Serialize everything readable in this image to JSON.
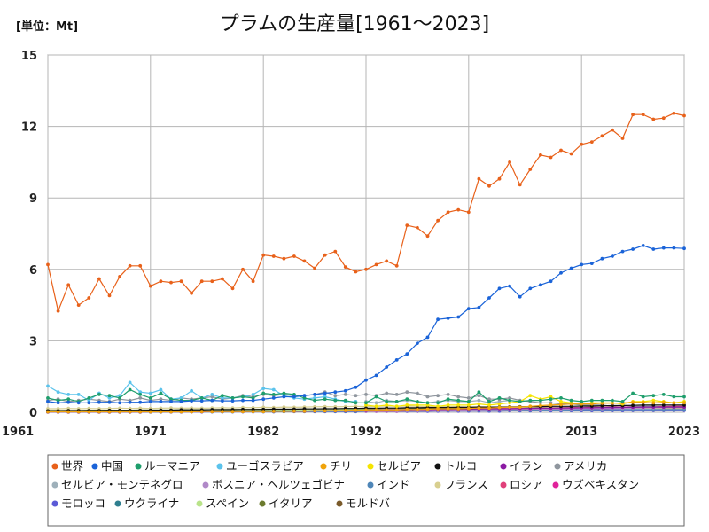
{
  "chart_data": {
    "type": "line",
    "title": "プラムの生産量[1961～2023]",
    "unit": "[単位：Mt]",
    "xlabel": "",
    "ylabel": "",
    "xlim": [
      1961,
      2023
    ],
    "ylim": [
      0,
      15
    ],
    "x_ticks": [
      1961,
      1971,
      1982,
      1992,
      2002,
      2013,
      2023
    ],
    "y_ticks": [
      0,
      3,
      6,
      9,
      12,
      15
    ],
    "grid": true,
    "legend_position": "bottom",
    "series": [
      {
        "name": "世界",
        "color": "#e8611a",
        "start": 1961,
        "values": [
          6.2,
          4.25,
          5.35,
          4.5,
          4.8,
          5.6,
          4.9,
          5.7,
          6.15,
          6.15,
          5.3,
          5.5,
          5.45,
          5.5,
          5.0,
          5.5,
          5.5,
          5.6,
          5.2,
          6.0,
          5.5,
          6.6,
          6.55,
          6.45,
          6.55,
          6.35,
          6.05,
          6.6,
          6.75,
          6.1,
          5.9,
          6.0,
          6.2,
          6.35,
          6.15,
          7.85,
          7.75,
          7.4,
          8.05,
          8.4,
          8.5,
          8.4,
          9.8,
          9.5,
          9.8,
          10.5,
          9.55,
          10.2,
          10.8,
          10.7,
          11.0,
          10.85,
          11.25,
          11.35,
          11.6,
          11.85,
          11.5,
          12.5,
          12.5,
          12.3,
          12.35,
          12.55,
          12.45
        ]
      },
      {
        "name": "中国",
        "color": "#1a63d8",
        "start": 1961,
        "values": [
          0.45,
          0.4,
          0.42,
          0.4,
          0.4,
          0.42,
          0.42,
          0.4,
          0.42,
          0.42,
          0.45,
          0.45,
          0.45,
          0.45,
          0.48,
          0.48,
          0.5,
          0.48,
          0.48,
          0.5,
          0.5,
          0.55,
          0.6,
          0.65,
          0.65,
          0.7,
          0.75,
          0.8,
          0.85,
          0.9,
          1.05,
          1.35,
          1.55,
          1.9,
          2.2,
          2.45,
          2.9,
          3.15,
          3.9,
          3.95,
          4.0,
          4.35,
          4.4,
          4.8,
          5.2,
          5.3,
          4.85,
          5.2,
          5.35,
          5.5,
          5.85,
          6.05,
          6.2,
          6.25,
          6.45,
          6.55,
          6.75,
          6.85,
          7.0,
          6.85,
          6.9,
          6.9,
          6.88
        ]
      },
      {
        "name": "ルーマニア",
        "color": "#1e9e6c",
        "start": 1961,
        "values": [
          0.6,
          0.5,
          0.55,
          0.45,
          0.6,
          0.75,
          0.7,
          0.6,
          0.95,
          0.75,
          0.6,
          0.8,
          0.55,
          0.5,
          0.5,
          0.6,
          0.5,
          0.7,
          0.6,
          0.65,
          0.6,
          0.8,
          0.75,
          0.8,
          0.75,
          0.6,
          0.5,
          0.55,
          0.5,
          0.5,
          0.4,
          0.4,
          0.65,
          0.45,
          0.45,
          0.55,
          0.45,
          0.4,
          0.4,
          0.55,
          0.5,
          0.45,
          0.85,
          0.45,
          0.6,
          0.5,
          0.45,
          0.5,
          0.5,
          0.55,
          0.6,
          0.5,
          0.45,
          0.5,
          0.5,
          0.5,
          0.45,
          0.8,
          0.65,
          0.7,
          0.75,
          0.65,
          0.65
        ]
      },
      {
        "name": "ユーゴスラビア",
        "color": "#5bc3ec",
        "start": 1961,
        "values": [
          1.1,
          0.85,
          0.75,
          0.75,
          0.5,
          0.8,
          0.6,
          0.7,
          1.25,
          0.85,
          0.8,
          0.95,
          0.55,
          0.6,
          0.9,
          0.6,
          0.75,
          0.6,
          0.6,
          0.65,
          0.75,
          1.0,
          0.95,
          0.7,
          0.6,
          0.55,
          0.6,
          0.65,
          0.55,
          0.45,
          0.45
        ]
      },
      {
        "name": "チリ",
        "color": "#f0a30a",
        "start": 1961,
        "values": [
          0.02,
          0.02,
          0.02,
          0.02,
          0.02,
          0.02,
          0.02,
          0.02,
          0.02,
          0.02,
          0.02,
          0.02,
          0.02,
          0.02,
          0.02,
          0.03,
          0.03,
          0.03,
          0.03,
          0.03,
          0.03,
          0.03,
          0.04,
          0.04,
          0.05,
          0.05,
          0.06,
          0.06,
          0.07,
          0.08,
          0.09,
          0.1,
          0.1,
          0.1,
          0.1,
          0.12,
          0.12,
          0.13,
          0.15,
          0.15,
          0.15,
          0.16,
          0.18,
          0.18,
          0.2,
          0.22,
          0.22,
          0.25,
          0.28,
          0.3,
          0.32,
          0.35,
          0.35,
          0.35,
          0.38,
          0.38,
          0.4,
          0.42,
          0.42,
          0.4,
          0.42,
          0.4,
          0.4
        ]
      },
      {
        "name": "セルビア",
        "color": "#f5e400",
        "start": 1992,
        "values": [
          0.3,
          0.25,
          0.3,
          0.25,
          0.3,
          0.3,
          0.3,
          0.25,
          0.3,
          0.3,
          0.3,
          0.35,
          0.3,
          0.35,
          0.4,
          0.45,
          0.7,
          0.55,
          0.65,
          0.45,
          0.4,
          0.35,
          0.4,
          0.4,
          0.4,
          0.35,
          0.45,
          0.45,
          0.5,
          0.45,
          0.4,
          0.45
        ]
      },
      {
        "name": "トルコ",
        "color": "#111111",
        "start": 1961,
        "values": [
          0.06,
          0.06,
          0.07,
          0.07,
          0.07,
          0.07,
          0.08,
          0.08,
          0.08,
          0.08,
          0.09,
          0.09,
          0.09,
          0.1,
          0.1,
          0.1,
          0.11,
          0.11,
          0.11,
          0.12,
          0.12,
          0.12,
          0.13,
          0.13,
          0.13,
          0.14,
          0.14,
          0.15,
          0.15,
          0.16,
          0.16,
          0.17,
          0.17,
          0.18,
          0.18,
          0.19,
          0.19,
          0.2,
          0.2,
          0.2,
          0.21,
          0.21,
          0.22,
          0.22,
          0.22,
          0.23,
          0.23,
          0.24,
          0.24,
          0.25,
          0.25,
          0.25,
          0.26,
          0.26,
          0.27,
          0.28,
          0.28,
          0.29,
          0.3,
          0.3,
          0.3,
          0.3,
          0.3
        ]
      },
      {
        "name": "イラン",
        "color": "#8b1aa3",
        "start": 1961,
        "values": [
          0.01,
          0.01,
          0.01,
          0.01,
          0.01,
          0.01,
          0.01,
          0.01,
          0.01,
          0.01,
          0.02,
          0.02,
          0.02,
          0.02,
          0.02,
          0.02,
          0.03,
          0.03,
          0.03,
          0.03,
          0.04,
          0.04,
          0.04,
          0.05,
          0.05,
          0.05,
          0.06,
          0.06,
          0.07,
          0.07,
          0.08,
          0.08,
          0.09,
          0.09,
          0.1,
          0.1,
          0.11,
          0.11,
          0.12,
          0.12,
          0.13,
          0.13,
          0.14,
          0.14,
          0.15,
          0.15,
          0.16,
          0.16,
          0.17,
          0.17,
          0.18,
          0.18,
          0.19,
          0.19,
          0.2,
          0.2,
          0.21,
          0.21,
          0.22,
          0.22,
          0.22,
          0.22,
          0.22
        ]
      },
      {
        "name": "アメリカ",
        "color": "#8f969e",
        "start": 1961,
        "values": [
          0.5,
          0.55,
          0.45,
          0.5,
          0.55,
          0.5,
          0.45,
          0.55,
          0.5,
          0.6,
          0.5,
          0.55,
          0.5,
          0.6,
          0.55,
          0.6,
          0.65,
          0.55,
          0.6,
          0.7,
          0.65,
          0.75,
          0.7,
          0.75,
          0.7,
          0.7,
          0.75,
          0.85,
          0.7,
          0.75,
          0.7,
          0.75,
          0.7,
          0.8,
          0.75,
          0.85,
          0.8,
          0.65,
          0.7,
          0.75,
          0.65,
          0.6,
          0.7,
          0.55,
          0.55,
          0.6,
          0.5,
          0.45,
          0.4,
          0.4,
          0.35,
          0.35,
          0.3,
          0.3,
          0.3,
          0.25,
          0.3,
          0.25,
          0.25,
          0.25,
          0.2,
          0.2,
          0.2
        ]
      },
      {
        "name": "セルビア・モンテネグロ",
        "color": "#9eb0ba",
        "start": 1992,
        "values": [
          0.45,
          0.4,
          0.5,
          0.45,
          0.5,
          0.45,
          0.4,
          0.45,
          0.5,
          0.45,
          0.45,
          0.5,
          0.4,
          0.45,
          0.5
        ]
      },
      {
        "name": "ボスニア・ヘルツェゴビナ",
        "color": "#b089c8",
        "start": 1992,
        "values": [
          0.05,
          0.05,
          0.06,
          0.06,
          0.07,
          0.07,
          0.08,
          0.08,
          0.09,
          0.09,
          0.1,
          0.1,
          0.11,
          0.11,
          0.12,
          0.12,
          0.13,
          0.13,
          0.14,
          0.14,
          0.15,
          0.15,
          0.16,
          0.16,
          0.17,
          0.17,
          0.18,
          0.18,
          0.19,
          0.19,
          0.2,
          0.2
        ]
      },
      {
        "name": "インド",
        "color": "#4f86b8",
        "start": 1961,
        "values": [
          0.01,
          0.01,
          0.01,
          0.01,
          0.01,
          0.01,
          0.01,
          0.01,
          0.01,
          0.01,
          0.01,
          0.01,
          0.02,
          0.02,
          0.02,
          0.02,
          0.02,
          0.02,
          0.02,
          0.03,
          0.03,
          0.03,
          0.03,
          0.03,
          0.04,
          0.04,
          0.04,
          0.04,
          0.05,
          0.05,
          0.05,
          0.05,
          0.06,
          0.06,
          0.06,
          0.06,
          0.07,
          0.07,
          0.07,
          0.07,
          0.08,
          0.08,
          0.08,
          0.08,
          0.09,
          0.09,
          0.09,
          0.09,
          0.1,
          0.1,
          0.1,
          0.1,
          0.11,
          0.11,
          0.11,
          0.11,
          0.12,
          0.12,
          0.12,
          0.12,
          0.12,
          0.12,
          0.12
        ]
      },
      {
        "name": "フランス",
        "color": "#d8cf8f",
        "start": 1961,
        "values": [
          0.15,
          0.15,
          0.16,
          0.15,
          0.16,
          0.15,
          0.16,
          0.17,
          0.16,
          0.17,
          0.16,
          0.17,
          0.18,
          0.17,
          0.18,
          0.17,
          0.18,
          0.19,
          0.18,
          0.2,
          0.19,
          0.21,
          0.2,
          0.22,
          0.21,
          0.22,
          0.23,
          0.24,
          0.23,
          0.24,
          0.25,
          0.24,
          0.25,
          0.26,
          0.25,
          0.26,
          0.25,
          0.24,
          0.25,
          0.24,
          0.23,
          0.22,
          0.23,
          0.22,
          0.21,
          0.2,
          0.21,
          0.2,
          0.19,
          0.2,
          0.19,
          0.18,
          0.19,
          0.18,
          0.17,
          0.18,
          0.17,
          0.16,
          0.17,
          0.16,
          0.15,
          0.15,
          0.15
        ]
      },
      {
        "name": "ロシア",
        "color": "#e0407a",
        "start": 1992,
        "values": [
          0.1,
          0.1,
          0.11,
          0.11,
          0.12,
          0.12,
          0.13,
          0.13,
          0.14,
          0.14,
          0.15,
          0.15,
          0.16,
          0.16,
          0.17,
          0.17,
          0.18,
          0.18,
          0.19,
          0.19,
          0.2,
          0.2,
          0.21,
          0.21,
          0.22,
          0.22,
          0.23,
          0.23,
          0.24,
          0.24,
          0.25,
          0.25
        ]
      },
      {
        "name": "ウズベキスタン",
        "color": "#e0229a",
        "start": 1992,
        "values": [
          0.04,
          0.04,
          0.05,
          0.05,
          0.06,
          0.06,
          0.07,
          0.07,
          0.08,
          0.08,
          0.09,
          0.09,
          0.1,
          0.1,
          0.11,
          0.11,
          0.12,
          0.12,
          0.13,
          0.13,
          0.14,
          0.14,
          0.15,
          0.15,
          0.16,
          0.16,
          0.17,
          0.17,
          0.18,
          0.18,
          0.19,
          0.19
        ]
      },
      {
        "name": "モロッコ",
        "color": "#5b5ad6",
        "start": 1961,
        "values": [
          0.01,
          0.01,
          0.01,
          0.01,
          0.01,
          0.01,
          0.01,
          0.01,
          0.01,
          0.01,
          0.01,
          0.01,
          0.01,
          0.01,
          0.02,
          0.02,
          0.02,
          0.02,
          0.02,
          0.02,
          0.02,
          0.02,
          0.02,
          0.03,
          0.03,
          0.03,
          0.03,
          0.03,
          0.03,
          0.03,
          0.03,
          0.04,
          0.04,
          0.04,
          0.04,
          0.04,
          0.04,
          0.04,
          0.05,
          0.05,
          0.05,
          0.05,
          0.05,
          0.05,
          0.05,
          0.06,
          0.06,
          0.06,
          0.06,
          0.06,
          0.06,
          0.07,
          0.07,
          0.07,
          0.07,
          0.07,
          0.07,
          0.08,
          0.08,
          0.08,
          0.08,
          0.08,
          0.08
        ]
      },
      {
        "name": "ウクライナ",
        "color": "#2f7f8f",
        "start": 1992,
        "values": [
          0.1,
          0.1,
          0.11,
          0.11,
          0.12,
          0.12,
          0.12,
          0.13,
          0.13,
          0.13,
          0.14,
          0.14,
          0.14,
          0.15,
          0.15,
          0.15,
          0.16,
          0.16,
          0.16,
          0.17,
          0.17,
          0.17,
          0.18,
          0.18,
          0.18,
          0.19,
          0.19,
          0.19,
          0.2,
          0.2,
          0.2,
          0.2
        ]
      },
      {
        "name": "スペイン",
        "color": "#b9e38a",
        "start": 1961,
        "values": [
          0.04,
          0.04,
          0.04,
          0.04,
          0.05,
          0.05,
          0.05,
          0.05,
          0.05,
          0.06,
          0.06,
          0.06,
          0.06,
          0.07,
          0.07,
          0.07,
          0.07,
          0.08,
          0.08,
          0.08,
          0.08,
          0.09,
          0.09,
          0.09,
          0.09,
          0.1,
          0.1,
          0.1,
          0.1,
          0.11,
          0.11,
          0.11,
          0.11,
          0.12,
          0.12,
          0.12,
          0.12,
          0.13,
          0.13,
          0.13,
          0.13,
          0.14,
          0.14,
          0.14,
          0.14,
          0.15,
          0.15,
          0.15,
          0.15,
          0.16,
          0.16,
          0.16,
          0.16,
          0.17,
          0.17,
          0.17,
          0.17,
          0.17,
          0.17,
          0.17,
          0.17,
          0.17,
          0.17
        ]
      },
      {
        "name": "イタリア",
        "color": "#6b7a2e",
        "start": 1961,
        "values": [
          0.08,
          0.08,
          0.08,
          0.08,
          0.09,
          0.09,
          0.09,
          0.09,
          0.09,
          0.1,
          0.1,
          0.1,
          0.1,
          0.11,
          0.11,
          0.11,
          0.11,
          0.12,
          0.12,
          0.12,
          0.12,
          0.13,
          0.13,
          0.13,
          0.13,
          0.14,
          0.14,
          0.14,
          0.14,
          0.15,
          0.15,
          0.15,
          0.15,
          0.16,
          0.16,
          0.16,
          0.16,
          0.17,
          0.17,
          0.17,
          0.17,
          0.18,
          0.18,
          0.18,
          0.18,
          0.19,
          0.19,
          0.19,
          0.19,
          0.2,
          0.2,
          0.2,
          0.2,
          0.21,
          0.21,
          0.21,
          0.21,
          0.22,
          0.22,
          0.22,
          0.22,
          0.22,
          0.22
        ]
      },
      {
        "name": "モルドバ",
        "color": "#7a5a2a",
        "start": 1992,
        "values": [
          0.06,
          0.06,
          0.07,
          0.07,
          0.08,
          0.08,
          0.09,
          0.09,
          0.1,
          0.1,
          0.11,
          0.11,
          0.12,
          0.12,
          0.13,
          0.13,
          0.14,
          0.14,
          0.15,
          0.15,
          0.16,
          0.16,
          0.17,
          0.17,
          0.18,
          0.18,
          0.19,
          0.19,
          0.2,
          0.2,
          0.2,
          0.2
        ]
      }
    ]
  }
}
